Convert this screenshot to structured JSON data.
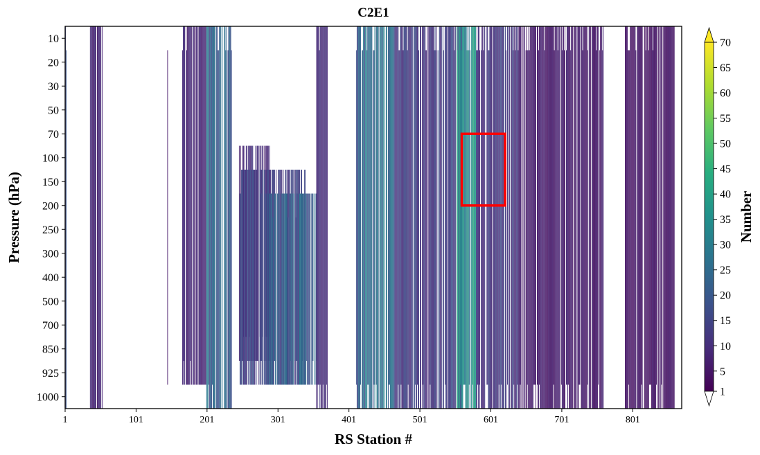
{
  "chart_data": {
    "type": "heatmap",
    "title": "C2E1",
    "xlabel": "RS Station #",
    "ylabel": "Pressure (hPa)",
    "x_ticks": [
      "1",
      "101",
      "201",
      "301",
      "401",
      "501",
      "601",
      "701",
      "801"
    ],
    "x_tick_values": [
      1,
      101,
      201,
      301,
      401,
      501,
      601,
      701,
      801
    ],
    "xlim": [
      1,
      870
    ],
    "pressure_levels": [
      "10",
      "20",
      "30",
      "50",
      "70",
      "100",
      "150",
      "200",
      "250",
      "300",
      "400",
      "500",
      "700",
      "850",
      "925",
      "1000"
    ],
    "colorbar": {
      "label": "Number",
      "colormap": "viridis",
      "min": 1,
      "max": 70,
      "extend": "both",
      "ticks": [
        "1",
        "5",
        "10",
        "15",
        "20",
        "25",
        "30",
        "35",
        "40",
        "45",
        "50",
        "55",
        "60",
        "65",
        "70"
      ],
      "tick_values": [
        1,
        5,
        10,
        15,
        20,
        25,
        30,
        35,
        40,
        45,
        50,
        55,
        60,
        65,
        70
      ]
    },
    "station_bands": [
      {
        "from": 1,
        "to": 3,
        "top_level": "10",
        "bottom_level": "1000",
        "value": 18
      },
      {
        "from": 36,
        "to": 54,
        "top_level": "10",
        "bottom_level": "1000",
        "value": 8
      },
      {
        "from": 145,
        "to": 146,
        "top_level": "20",
        "bottom_level": "1000",
        "value": 5
      },
      {
        "from": 166,
        "to": 200,
        "top_level": "10",
        "bottom_level": "925",
        "value": 8
      },
      {
        "from": 200,
        "to": 236,
        "top_level": "10",
        "bottom_level": "1000",
        "value": 22
      },
      {
        "from": 246,
        "to": 290,
        "top_level": "100",
        "bottom_level": "850",
        "value": 9
      },
      {
        "from": 246,
        "to": 340,
        "top_level": "150",
        "bottom_level": "925",
        "value": 14
      },
      {
        "from": 285,
        "to": 356,
        "top_level": "200",
        "bottom_level": "925",
        "value": 22
      },
      {
        "from": 355,
        "to": 372,
        "top_level": "10",
        "bottom_level": "1000",
        "value": 10
      },
      {
        "from": 411,
        "to": 465,
        "top_level": "10",
        "bottom_level": "1000",
        "value": 24
      },
      {
        "from": 465,
        "to": 560,
        "top_level": "10",
        "bottom_level": "1000",
        "value": 13
      },
      {
        "from": 553,
        "to": 580,
        "top_level": "10",
        "bottom_level": "1000",
        "value": 34
      },
      {
        "from": 580,
        "to": 640,
        "top_level": "10",
        "bottom_level": "1000",
        "value": 12
      },
      {
        "from": 640,
        "to": 760,
        "top_level": "10",
        "bottom_level": "1000",
        "value": 6
      },
      {
        "from": 790,
        "to": 862,
        "top_level": "10",
        "bottom_level": "1000",
        "value": 5
      }
    ],
    "annotation": {
      "shape": "rectangle",
      "color": "#ff0000",
      "x_range": [
        560,
        621
      ],
      "y_range": [
        "70",
        "200"
      ]
    }
  }
}
